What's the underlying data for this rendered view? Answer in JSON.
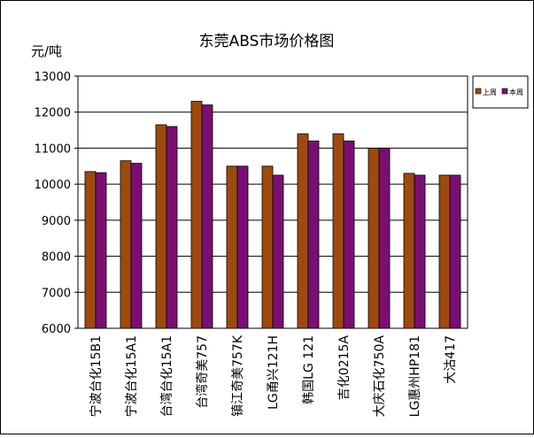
{
  "chart_data": {
    "type": "bar",
    "title": "东莞ABS市场价格图",
    "ylabel": "元/吨",
    "xlabel": "",
    "ylim": [
      6000,
      13000
    ],
    "yticks": [
      6000,
      7000,
      8000,
      9000,
      10000,
      11000,
      12000,
      13000
    ],
    "grid": true,
    "legend_position": "right",
    "categories": [
      "宁波台化15B1",
      "宁波台化15A1",
      "台湾台化15A1",
      "台湾奇美757",
      "镇江奇美757K",
      "LG甬兴121H",
      "韩国LG 121",
      "吉化0215A",
      "大庆石化750A",
      "LG惠州HP181",
      "大沽417"
    ],
    "series": [
      {
        "name": "上周",
        "color": "#9E4A0E",
        "values": [
          10350,
          10650,
          11650,
          12300,
          10500,
          10500,
          11400,
          11400,
          11000,
          10300,
          10250
        ]
      },
      {
        "name": "本周",
        "color": "#7A0F73",
        "values": [
          10320,
          10580,
          11600,
          12200,
          10500,
          10250,
          11200,
          11200,
          11000,
          10250,
          10250
        ]
      }
    ]
  }
}
